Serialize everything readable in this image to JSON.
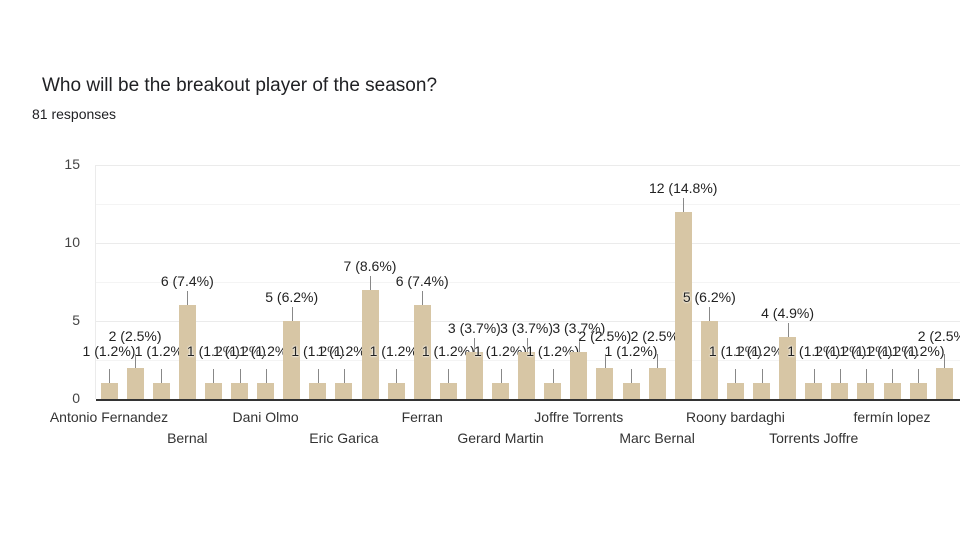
{
  "header": {
    "title": "Who will be the breakout player of the season?",
    "subtitle": "81 responses"
  },
  "chart_data": {
    "type": "bar",
    "title": "Who will be the breakout player of the season?",
    "subtitle": "81 responses",
    "xlabel": "",
    "ylabel": "",
    "ylim": [
      0,
      15
    ],
    "yticks": [
      0,
      5,
      10,
      15
    ],
    "grid": true,
    "legend": "none",
    "bar_color": "#d7c6a5",
    "categories": [
      "Antonio Fernandez",
      "",
      "",
      "Bernal",
      "",
      "",
      "Dani Olmo",
      "",
      "",
      "Eric Garica",
      "",
      "",
      "Ferran",
      "",
      "",
      "Gerard Martin",
      "",
      "",
      "Joffre Torrents",
      "",
      "",
      "Marc Bernal",
      "",
      "",
      "Roony bardaghi",
      "",
      "",
      "Torrents Joffre",
      "",
      "",
      "fermín lopez",
      "",
      ""
    ],
    "values": [
      1,
      2,
      1,
      6,
      1,
      1,
      1,
      5,
      1,
      1,
      7,
      1,
      6,
      1,
      3,
      1,
      3,
      1,
      3,
      2,
      1,
      2,
      12,
      5,
      1,
      1,
      4,
      1,
      1,
      1,
      1,
      1,
      2
    ],
    "data_labels": [
      "1 (1.2%)",
      "2 (2.5%)",
      "1 (1.2%)",
      "6 (7.4%)",
      "1 (1.2%)",
      "1 (1.2%)",
      "1 (1.2%)",
      "5 (6.2%)",
      "1 (1.2%)",
      "1 (1.2%)",
      "7 (8.6%)",
      "1 (1.2%)",
      "6 (7.4%)",
      "1 (1.2%)",
      "3 (3.7%)",
      "1 (1.2%)",
      "3 (3.7%)",
      "1 (1.2%)",
      "3 (3.7%)",
      "2 (2.5%)",
      "1 (1.2%)",
      "2 (2.5%)",
      "12 (14.8%)",
      "5 (6.2%)",
      "1 (1.2%)",
      "1 (1.2%)",
      "4 (4.9%)",
      "1 (1.2%)",
      "1 (1.2%)",
      "1 (1.2%)",
      "1 (1.2%)",
      "1 (1.2%)",
      "2 (2.5%)"
    ]
  }
}
